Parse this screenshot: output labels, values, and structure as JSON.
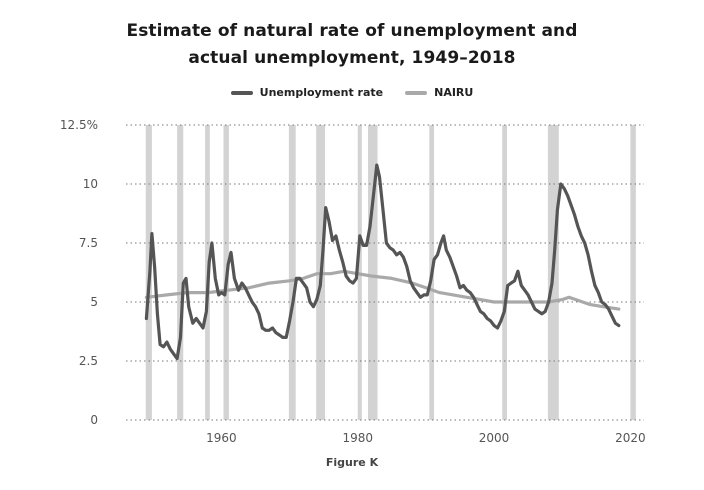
{
  "chart_data": {
    "type": "line",
    "title_lines": [
      "Estimate of natural rate of unemployment and",
      "actual unemployment, 1949–2018"
    ],
    "caption": "Figure K",
    "xlabel": "",
    "ylabel": "",
    "xlim": [
      1946,
      2022
    ],
    "ylim": [
      0,
      12.5
    ],
    "x_ticks": [
      1960,
      1980,
      2000,
      2020
    ],
    "x_tick_labels": [
      "1960",
      "1980",
      "2000",
      "2020"
    ],
    "y_ticks": [
      0,
      2.5,
      5,
      7.5,
      10,
      12.5
    ],
    "y_tick_labels": [
      "0",
      "2.5",
      "5",
      "7.5",
      "10",
      "12.5%"
    ],
    "grid": "horizontal-dotted",
    "legend_position": "top-center",
    "recessions": [
      [
        1948.9,
        1949.8
      ],
      [
        1953.5,
        1954.4
      ],
      [
        1957.6,
        1958.3
      ],
      [
        1960.3,
        1961.1
      ],
      [
        1969.9,
        1970.9
      ],
      [
        1973.9,
        1975.2
      ],
      [
        1980.0,
        1980.6
      ],
      [
        1981.5,
        1982.9
      ],
      [
        1990.5,
        1991.2
      ],
      [
        2001.2,
        2001.9
      ],
      [
        2007.9,
        2009.5
      ],
      [
        2020.0,
        2020.8
      ]
    ],
    "series": [
      {
        "name": "Unemployment rate",
        "color": "#555555",
        "points": [
          [
            1949.0,
            4.3
          ],
          [
            1949.5,
            6.3
          ],
          [
            1949.8,
            7.9
          ],
          [
            1950.2,
            6.5
          ],
          [
            1950.6,
            4.5
          ],
          [
            1951.0,
            3.2
          ],
          [
            1951.5,
            3.1
          ],
          [
            1952.0,
            3.3
          ],
          [
            1952.5,
            3.0
          ],
          [
            1953.0,
            2.8
          ],
          [
            1953.5,
            2.6
          ],
          [
            1954.0,
            3.5
          ],
          [
            1954.4,
            5.8
          ],
          [
            1954.8,
            6.0
          ],
          [
            1955.2,
            4.8
          ],
          [
            1955.8,
            4.1
          ],
          [
            1956.3,
            4.3
          ],
          [
            1956.8,
            4.1
          ],
          [
            1957.3,
            3.9
          ],
          [
            1957.8,
            4.6
          ],
          [
            1958.2,
            6.7
          ],
          [
            1958.6,
            7.5
          ],
          [
            1959.1,
            6.0
          ],
          [
            1959.6,
            5.3
          ],
          [
            1960.0,
            5.4
          ],
          [
            1960.5,
            5.3
          ],
          [
            1961.0,
            6.6
          ],
          [
            1961.4,
            7.1
          ],
          [
            1961.9,
            6.0
          ],
          [
            1962.5,
            5.5
          ],
          [
            1963.0,
            5.8
          ],
          [
            1963.5,
            5.6
          ],
          [
            1964.0,
            5.3
          ],
          [
            1964.5,
            5.0
          ],
          [
            1965.0,
            4.8
          ],
          [
            1965.5,
            4.5
          ],
          [
            1966.0,
            3.9
          ],
          [
            1966.5,
            3.8
          ],
          [
            1967.0,
            3.8
          ],
          [
            1967.5,
            3.9
          ],
          [
            1968.0,
            3.7
          ],
          [
            1968.5,
            3.6
          ],
          [
            1969.0,
            3.5
          ],
          [
            1969.5,
            3.5
          ],
          [
            1970.0,
            4.2
          ],
          [
            1970.5,
            5.0
          ],
          [
            1971.0,
            6.0
          ],
          [
            1971.5,
            6.0
          ],
          [
            1972.0,
            5.8
          ],
          [
            1972.5,
            5.6
          ],
          [
            1973.0,
            5.0
          ],
          [
            1973.5,
            4.8
          ],
          [
            1974.0,
            5.1
          ],
          [
            1974.5,
            5.7
          ],
          [
            1974.9,
            7.2
          ],
          [
            1975.3,
            9.0
          ],
          [
            1975.8,
            8.4
          ],
          [
            1976.3,
            7.6
          ],
          [
            1976.8,
            7.8
          ],
          [
            1977.3,
            7.2
          ],
          [
            1977.8,
            6.7
          ],
          [
            1978.3,
            6.1
          ],
          [
            1978.8,
            5.9
          ],
          [
            1979.3,
            5.8
          ],
          [
            1979.8,
            6.0
          ],
          [
            1980.3,
            7.8
          ],
          [
            1980.8,
            7.4
          ],
          [
            1981.3,
            7.4
          ],
          [
            1981.8,
            8.2
          ],
          [
            1982.3,
            9.5
          ],
          [
            1982.8,
            10.8
          ],
          [
            1983.2,
            10.3
          ],
          [
            1983.7,
            8.9
          ],
          [
            1984.2,
            7.5
          ],
          [
            1984.7,
            7.3
          ],
          [
            1985.2,
            7.2
          ],
          [
            1985.7,
            7.0
          ],
          [
            1986.2,
            7.1
          ],
          [
            1986.7,
            6.9
          ],
          [
            1987.2,
            6.5
          ],
          [
            1987.7,
            5.9
          ],
          [
            1988.2,
            5.6
          ],
          [
            1988.7,
            5.4
          ],
          [
            1989.2,
            5.2
          ],
          [
            1989.7,
            5.3
          ],
          [
            1990.2,
            5.3
          ],
          [
            1990.7,
            5.9
          ],
          [
            1991.2,
            6.8
          ],
          [
            1991.7,
            7.0
          ],
          [
            1992.2,
            7.5
          ],
          [
            1992.6,
            7.8
          ],
          [
            1993.0,
            7.2
          ],
          [
            1993.5,
            6.9
          ],
          [
            1994.0,
            6.5
          ],
          [
            1994.5,
            6.1
          ],
          [
            1995.0,
            5.6
          ],
          [
            1995.5,
            5.7
          ],
          [
            1996.0,
            5.5
          ],
          [
            1996.5,
            5.4
          ],
          [
            1997.0,
            5.2
          ],
          [
            1997.5,
            4.9
          ],
          [
            1998.0,
            4.6
          ],
          [
            1998.5,
            4.5
          ],
          [
            1999.0,
            4.3
          ],
          [
            1999.5,
            4.2
          ],
          [
            2000.0,
            4.0
          ],
          [
            2000.5,
            3.9
          ],
          [
            2001.0,
            4.2
          ],
          [
            2001.5,
            4.6
          ],
          [
            2002.0,
            5.7
          ],
          [
            2002.5,
            5.8
          ],
          [
            2003.0,
            5.9
          ],
          [
            2003.5,
            6.3
          ],
          [
            2004.0,
            5.7
          ],
          [
            2004.5,
            5.5
          ],
          [
            2005.0,
            5.3
          ],
          [
            2005.5,
            5.0
          ],
          [
            2006.0,
            4.7
          ],
          [
            2006.5,
            4.6
          ],
          [
            2007.0,
            4.5
          ],
          [
            2007.5,
            4.6
          ],
          [
            2008.0,
            5.0
          ],
          [
            2008.5,
            5.8
          ],
          [
            2008.9,
            7.2
          ],
          [
            2009.3,
            8.9
          ],
          [
            2009.8,
            10.0
          ],
          [
            2010.3,
            9.8
          ],
          [
            2010.8,
            9.5
          ],
          [
            2011.3,
            9.1
          ],
          [
            2011.8,
            8.7
          ],
          [
            2012.3,
            8.2
          ],
          [
            2012.8,
            7.8
          ],
          [
            2013.3,
            7.5
          ],
          [
            2013.8,
            7.0
          ],
          [
            2014.3,
            6.3
          ],
          [
            2014.8,
            5.7
          ],
          [
            2015.3,
            5.4
          ],
          [
            2015.8,
            5.0
          ],
          [
            2016.3,
            4.9
          ],
          [
            2016.8,
            4.7
          ],
          [
            2017.3,
            4.4
          ],
          [
            2017.8,
            4.1
          ],
          [
            2018.3,
            4.0
          ]
        ]
      },
      {
        "name": "NAIRU",
        "color": "#a9a9a9",
        "points": [
          [
            1949.0,
            5.2
          ],
          [
            1952.0,
            5.3
          ],
          [
            1955.0,
            5.4
          ],
          [
            1958.0,
            5.4
          ],
          [
            1961.0,
            5.5
          ],
          [
            1964.0,
            5.6
          ],
          [
            1967.0,
            5.8
          ],
          [
            1970.0,
            5.9
          ],
          [
            1972.0,
            6.0
          ],
          [
            1974.0,
            6.2
          ],
          [
            1976.0,
            6.2
          ],
          [
            1978.0,
            6.3
          ],
          [
            1980.0,
            6.2
          ],
          [
            1982.0,
            6.1
          ],
          [
            1985.0,
            6.0
          ],
          [
            1988.0,
            5.8
          ],
          [
            1990.0,
            5.6
          ],
          [
            1992.0,
            5.4
          ],
          [
            1994.0,
            5.3
          ],
          [
            1996.0,
            5.2
          ],
          [
            1998.0,
            5.1
          ],
          [
            2000.0,
            5.0
          ],
          [
            2002.0,
            5.0
          ],
          [
            2004.0,
            5.0
          ],
          [
            2006.0,
            5.0
          ],
          [
            2008.0,
            5.0
          ],
          [
            2010.0,
            5.1
          ],
          [
            2011.0,
            5.2
          ],
          [
            2012.0,
            5.1
          ],
          [
            2014.0,
            4.9
          ],
          [
            2016.0,
            4.8
          ],
          [
            2018.3,
            4.7
          ]
        ]
      }
    ]
  },
  "colors": {
    "recession_band": "#d3d3d3",
    "grid": "#777777",
    "axis_text": "#555555"
  }
}
